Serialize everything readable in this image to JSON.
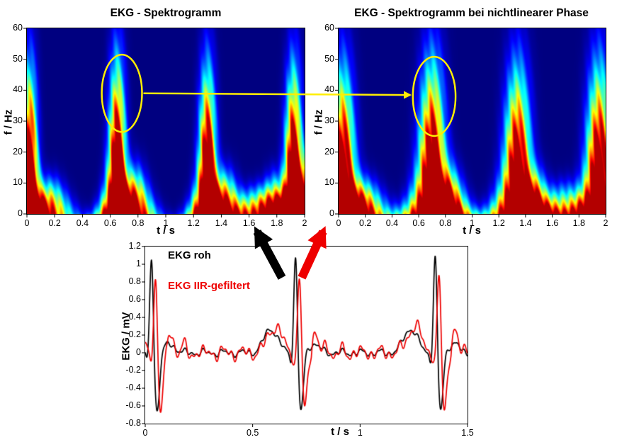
{
  "figure_background": "#ffffff",
  "chart_data": [
    {
      "id": "spectrogram-left",
      "type": "heatmap",
      "title": "EKG - Spektrogramm",
      "xlabel": "t / s",
      "ylabel": "f / Hz",
      "xlim": [
        0,
        2
      ],
      "ylim": [
        0,
        60
      ],
      "xtick_labels": [
        "0",
        "0.2",
        "0.4",
        "0.6",
        "0.8",
        "1",
        "1.2",
        "1.4",
        "1.6",
        "1.8",
        "2"
      ],
      "ytick_labels": [
        "0",
        "10",
        "20",
        "30",
        "40",
        "50",
        "60"
      ],
      "colormap": "jet",
      "background_color": "#000080",
      "blobs": [
        {
          "t": 0.02,
          "fmax": 40,
          "width": 0.035,
          "amp": 1.6
        },
        {
          "t": 0.17,
          "fmax": 10,
          "width": 0.05,
          "amp": 0.85
        },
        {
          "t": 0.65,
          "fmax": 42,
          "width": 0.038,
          "amp": 1.65
        },
        {
          "t": 0.78,
          "fmax": 13,
          "width": 0.045,
          "amp": 1.0
        },
        {
          "t": 1.3,
          "fmax": 40,
          "width": 0.038,
          "amp": 1.6
        },
        {
          "t": 1.43,
          "fmax": 12,
          "width": 0.045,
          "amp": 0.95
        },
        {
          "t": 1.66,
          "fmax": 8,
          "width": 0.055,
          "amp": 0.65
        },
        {
          "t": 1.78,
          "fmax": 11,
          "width": 0.04,
          "amp": 0.8
        },
        {
          "t": 1.92,
          "fmax": 40,
          "width": 0.038,
          "amp": 1.6
        },
        {
          "t": 2.02,
          "fmax": 16,
          "width": 0.04,
          "amp": 1.0
        }
      ],
      "highlight_ellipse": {
        "t": 0.684,
        "f": 39,
        "rt": 0.145,
        "rf": 12.5,
        "color": "#ffee00"
      }
    },
    {
      "id": "spectrogram-right",
      "type": "heatmap",
      "title": "EKG - Spektrogramm bei nichtlinearer Phase",
      "xlabel": "t / s",
      "ylabel": "f / Hz",
      "xlim": [
        0,
        2
      ],
      "ylim": [
        0,
        60
      ],
      "xtick_labels": [
        "0",
        "0.2",
        "0.4",
        "0.6",
        "0.8",
        "1",
        "1.2",
        "1.4",
        "1.6",
        "1.8",
        "2"
      ],
      "ytick_labels": [
        "0",
        "10",
        "20",
        "30",
        "40",
        "50",
        "60"
      ],
      "colormap": "jet",
      "background_color": "#000080",
      "blobs": [
        {
          "t": 0.03,
          "fmax": 40,
          "width": 0.055,
          "amp": 1.5
        },
        {
          "t": 0.19,
          "fmax": 10,
          "width": 0.06,
          "amp": 0.8
        },
        {
          "t": 0.7,
          "fmax": 42,
          "width": 0.06,
          "amp": 1.55
        },
        {
          "t": 0.83,
          "fmax": 13,
          "width": 0.05,
          "amp": 0.9
        },
        {
          "t": 1.34,
          "fmax": 40,
          "width": 0.06,
          "amp": 1.5
        },
        {
          "t": 1.47,
          "fmax": 12,
          "width": 0.05,
          "amp": 0.85
        },
        {
          "t": 1.7,
          "fmax": 9,
          "width": 0.06,
          "amp": 0.6
        },
        {
          "t": 1.95,
          "fmax": 41,
          "width": 0.058,
          "amp": 1.5
        }
      ],
      "highlight_ellipse": {
        "t": 0.716,
        "f": 38,
        "rt": 0.16,
        "rf": 12.8,
        "color": "#ffee00"
      }
    },
    {
      "id": "ekg-time-series",
      "type": "line",
      "title": "",
      "xlabel": "t / s",
      "ylabel": "EKG / mV",
      "xlim": [
        0,
        1.5
      ],
      "ylim": [
        -0.8,
        1.2
      ],
      "xtick_labels": [
        "0",
        "0.5",
        "1",
        "1.5"
      ],
      "ytick_labels": [
        "-0.8",
        "-0.6",
        "-0.4",
        "-0.2",
        "0",
        "0.2",
        "0.4",
        "0.6",
        "0.8",
        "1",
        "1.2"
      ],
      "series": [
        {
          "name": "EKG roh",
          "color": "#000000",
          "beat_times": [
            0.03,
            0.7,
            1.35
          ],
          "r_peak": 1.15,
          "s_trough": -0.68,
          "p_amp": 0.27,
          "t_amp": 0.1,
          "delay": 0,
          "ringing": 0,
          "noise": 0.025
        },
        {
          "name": "EKG IIR-gefiltert",
          "color": "#ee0000",
          "beat_times": [
            0.03,
            0.7,
            1.35
          ],
          "r_peak": 0.92,
          "s_trough": -0.66,
          "p_amp": 0.3,
          "t_amp": 0.12,
          "delay": 0.018,
          "ringing": 0.17,
          "noise": 0.05
        }
      ]
    }
  ],
  "annotations": {
    "link_arrow_color": "#ffee00",
    "raw_to_left_arrow_color": "#000000",
    "filtered_to_right_arrow_color": "#ee0000"
  }
}
